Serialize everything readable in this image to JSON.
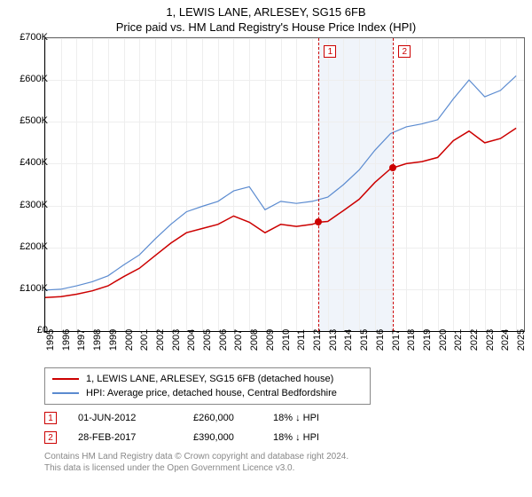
{
  "title": "1, LEWIS LANE, ARLESEY, SG15 6FB",
  "subtitle": "Price paid vs. HM Land Registry's House Price Index (HPI)",
  "chart": {
    "type": "line",
    "background_color": "#ffffff",
    "grid_color": "#eeeeee",
    "axis_color": "#000000",
    "ylim": [
      0,
      700000
    ],
    "ytick_step": 100000,
    "yticks": [
      "£0",
      "£100K",
      "£200K",
      "£300K",
      "£400K",
      "£500K",
      "£600K",
      "£700K"
    ],
    "xlim": [
      1995,
      2025.5
    ],
    "xticks": [
      1995,
      1996,
      1997,
      1998,
      1999,
      2000,
      2001,
      2002,
      2003,
      2004,
      2005,
      2006,
      2007,
      2008,
      2009,
      2010,
      2011,
      2012,
      2013,
      2014,
      2015,
      2016,
      2017,
      2018,
      2019,
      2020,
      2021,
      2022,
      2023,
      2024,
      2025
    ],
    "band": {
      "start": 2012.42,
      "end": 2017.16,
      "color": "#f0f4fa"
    },
    "markers": [
      {
        "label": "1",
        "x": 2012.42,
        "color": "#cc0000",
        "box_top": 8
      },
      {
        "label": "2",
        "x": 2017.16,
        "color": "#cc0000",
        "box_top": 8
      }
    ],
    "series": [
      {
        "name": "property",
        "label": "1, LEWIS LANE, ARLESEY, SG15 6FB (detached house)",
        "color": "#cc0000",
        "line_width": 1.5,
        "points": [
          [
            1995,
            80000
          ],
          [
            1996,
            82000
          ],
          [
            1997,
            88000
          ],
          [
            1998,
            96000
          ],
          [
            1999,
            108000
          ],
          [
            2000,
            130000
          ],
          [
            2001,
            150000
          ],
          [
            2002,
            180000
          ],
          [
            2003,
            210000
          ],
          [
            2004,
            235000
          ],
          [
            2005,
            245000
          ],
          [
            2006,
            255000
          ],
          [
            2007,
            275000
          ],
          [
            2008,
            260000
          ],
          [
            2009,
            235000
          ],
          [
            2010,
            255000
          ],
          [
            2011,
            250000
          ],
          [
            2012,
            255000
          ],
          [
            2012.42,
            260000
          ],
          [
            2013,
            262000
          ],
          [
            2014,
            288000
          ],
          [
            2015,
            315000
          ],
          [
            2016,
            355000
          ],
          [
            2017,
            388000
          ],
          [
            2017.16,
            390000
          ],
          [
            2018,
            400000
          ],
          [
            2019,
            405000
          ],
          [
            2020,
            415000
          ],
          [
            2021,
            455000
          ],
          [
            2022,
            478000
          ],
          [
            2023,
            450000
          ],
          [
            2024,
            460000
          ],
          [
            2025,
            485000
          ]
        ],
        "sale_points": [
          {
            "x": 2012.42,
            "y": 260000,
            "color": "#cc0000"
          },
          {
            "x": 2017.16,
            "y": 390000,
            "color": "#cc0000"
          }
        ]
      },
      {
        "name": "hpi",
        "label": "HPI: Average price, detached house, Central Bedfordshire",
        "color": "#5b8bd0",
        "line_width": 1.2,
        "points": [
          [
            1995,
            98000
          ],
          [
            1996,
            100000
          ],
          [
            1997,
            108000
          ],
          [
            1998,
            118000
          ],
          [
            1999,
            132000
          ],
          [
            2000,
            158000
          ],
          [
            2001,
            182000
          ],
          [
            2002,
            220000
          ],
          [
            2003,
            255000
          ],
          [
            2004,
            285000
          ],
          [
            2005,
            298000
          ],
          [
            2006,
            310000
          ],
          [
            2007,
            335000
          ],
          [
            2008,
            345000
          ],
          [
            2009,
            290000
          ],
          [
            2010,
            310000
          ],
          [
            2011,
            305000
          ],
          [
            2012,
            310000
          ],
          [
            2013,
            320000
          ],
          [
            2014,
            350000
          ],
          [
            2015,
            385000
          ],
          [
            2016,
            432000
          ],
          [
            2017,
            472000
          ],
          [
            2018,
            488000
          ],
          [
            2019,
            495000
          ],
          [
            2020,
            505000
          ],
          [
            2021,
            555000
          ],
          [
            2022,
            600000
          ],
          [
            2023,
            560000
          ],
          [
            2024,
            575000
          ],
          [
            2025,
            610000
          ]
        ]
      }
    ]
  },
  "legend": {
    "border_color": "#888888",
    "items": [
      {
        "color": "#cc0000",
        "label": "1, LEWIS LANE, ARLESEY, SG15 6FB (detached house)"
      },
      {
        "color": "#5b8bd0",
        "label": "HPI: Average price, detached house, Central Bedfordshire"
      }
    ]
  },
  "sales": [
    {
      "marker": "1",
      "marker_color": "#cc0000",
      "date": "01-JUN-2012",
      "price": "£260,000",
      "delta": "18% ↓ HPI"
    },
    {
      "marker": "2",
      "marker_color": "#cc0000",
      "date": "28-FEB-2017",
      "price": "£390,000",
      "delta": "18% ↓ HPI"
    }
  ],
  "attribution": {
    "line1": "Contains HM Land Registry data © Crown copyright and database right 2024.",
    "line2": "This data is licensed under the Open Government Licence v3.0."
  }
}
